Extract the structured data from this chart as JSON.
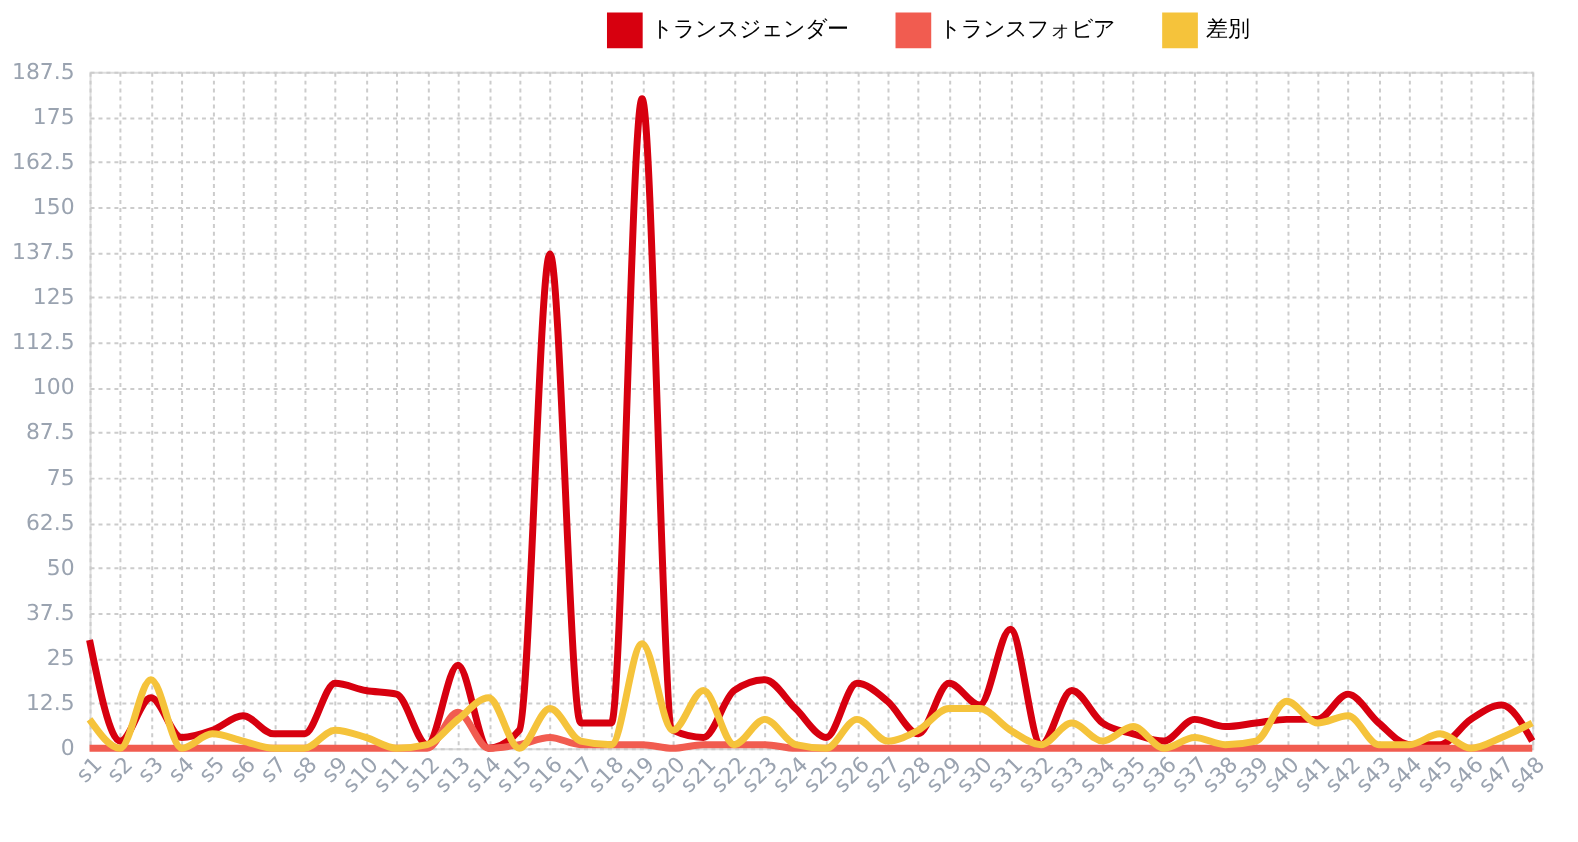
{
  "chart_data": {
    "type": "line",
    "categories": [
      "s1",
      "s2",
      "s3",
      "s4",
      "s5",
      "s6",
      "s7",
      "s8",
      "s9",
      "s10",
      "s11",
      "s12",
      "s13",
      "s14",
      "s15",
      "s16",
      "s17",
      "s18",
      "s19",
      "s20",
      "s21",
      "s22",
      "s23",
      "s24",
      "s25",
      "s26",
      "s27",
      "s28",
      "s29",
      "s30",
      "s31",
      "s32",
      "s33",
      "s34",
      "s35",
      "s36",
      "s37",
      "s38",
      "s39",
      "s40",
      "s41",
      "s42",
      "s43",
      "s44",
      "s45",
      "s46",
      "s47",
      "s48"
    ],
    "series": [
      {
        "name": "トランスジェンダー",
        "color": "#d7000f",
        "values": [
          30,
          2,
          14,
          3,
          5,
          9,
          4,
          4,
          18,
          16,
          15,
          1,
          23,
          0,
          5,
          137,
          7,
          7,
          180,
          5,
          3,
          16,
          19,
          11,
          3,
          18,
          13,
          4,
          18,
          12,
          33,
          1,
          16,
          7,
          4,
          2,
          8,
          6,
          7,
          8,
          8,
          15,
          7,
          1,
          1,
          8,
          12,
          2
        ]
      },
      {
        "name": "トランスフォビア",
        "color": "#f15c50",
        "values": [
          0,
          0,
          0,
          0,
          0,
          0,
          0,
          0,
          0,
          0,
          0,
          0,
          10,
          0,
          1,
          3,
          1,
          1,
          1,
          0,
          1,
          1,
          1,
          0,
          0,
          0,
          0,
          0,
          0,
          0,
          0,
          0,
          0,
          0,
          0,
          0,
          0,
          0,
          0,
          0,
          0,
          0,
          0,
          0,
          0,
          0,
          0,
          0
        ]
      },
      {
        "name": "差別",
        "color": "#f5c33b",
        "values": [
          8,
          0,
          19,
          0,
          4,
          2,
          0,
          0,
          5,
          3,
          0,
          1,
          8,
          14,
          0,
          11,
          2,
          1,
          29,
          5,
          16,
          1,
          8,
          1,
          0,
          8,
          2,
          5,
          11,
          11,
          5,
          1,
          7,
          2,
          6,
          0,
          3,
          1,
          2,
          13,
          7,
          9,
          1,
          1,
          4,
          0,
          3,
          7
        ]
      }
    ],
    "ylim": [
      0,
      187.5
    ],
    "yticks": [
      0,
      12.5,
      25,
      37.5,
      50,
      62.5,
      75,
      87.5,
      100,
      112.5,
      125,
      137.5,
      150,
      162.5,
      175,
      187.5
    ],
    "grid": true,
    "legend": "top",
    "line_style": "solid",
    "marker": "none"
  }
}
